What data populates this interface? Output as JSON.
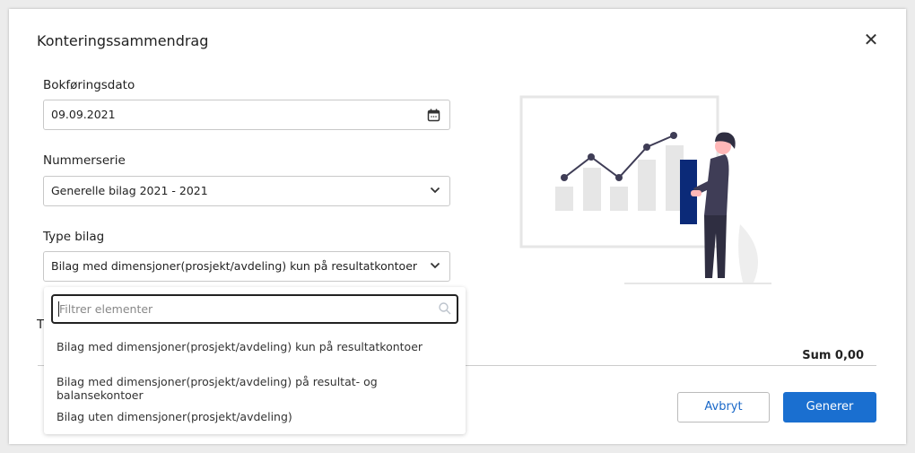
{
  "dialog": {
    "title": "Konteringssammendrag",
    "close_icon": "close-icon"
  },
  "form": {
    "date_label": "Bokføringsdato",
    "date_value": "09.09.2021",
    "series_label": "Nummerserie",
    "series_value": "Generelle bilag 2021 - 2021",
    "type_label": "Type bilag",
    "type_value": "Bilag med dimensjoner(prosjekt/avdeling) kun på resultatkontoer",
    "hidden_label_fragment": "T"
  },
  "dropdown": {
    "filter_placeholder": "Filtrer elementer",
    "options": [
      "Bilag med dimensjoner(prosjekt/avdeling) kun på resultatkontoer",
      "Bilag med dimensjoner(prosjekt/avdeling) på resultat- og balansekontoer",
      "Bilag uten dimensjoner(prosjekt/avdeling)"
    ]
  },
  "summary": {
    "sum": "Sum 0,00"
  },
  "buttons": {
    "cancel": "Avbryt",
    "generate": "Generer"
  },
  "colors": {
    "primary": "#1a6fd0",
    "illustration_bar": "#0b2a78",
    "figure": "#3f3d56"
  }
}
